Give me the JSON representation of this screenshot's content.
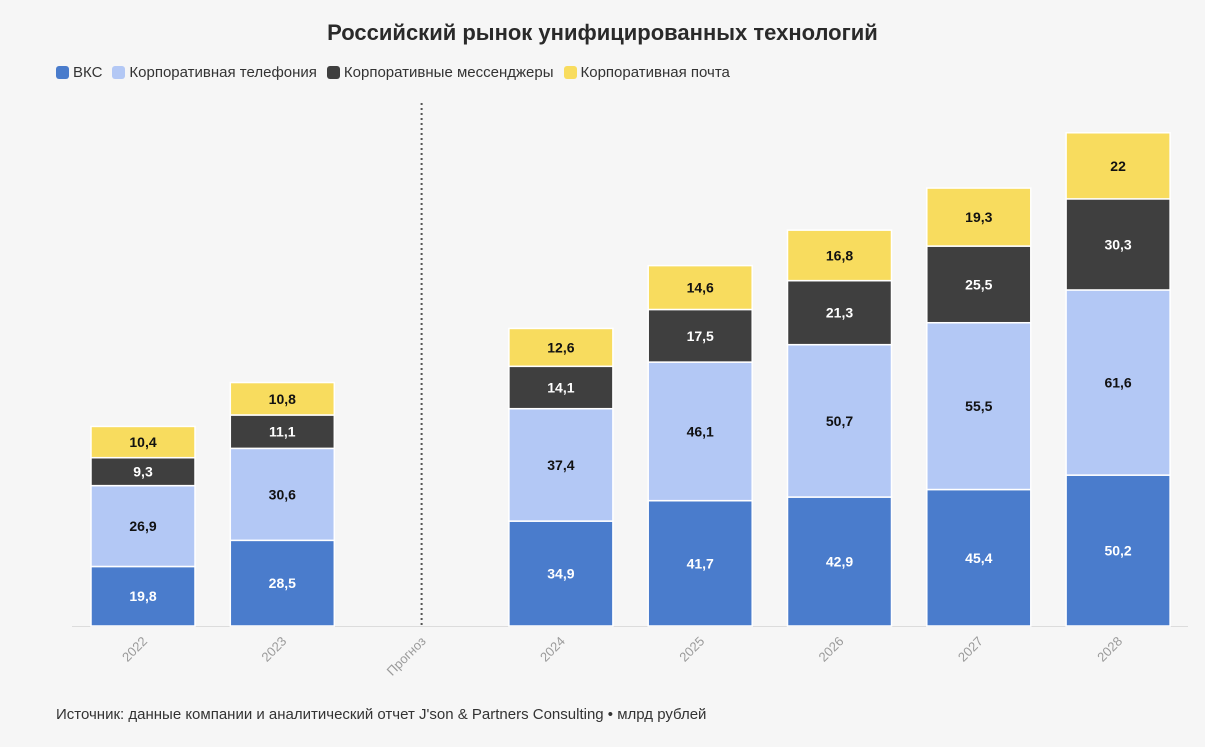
{
  "chart_data": {
    "type": "bar",
    "stacked": true,
    "title": "Российский рынок унифицированных технологий",
    "categories": [
      "2022",
      "2023",
      "Прогноз",
      "2024",
      "2025",
      "2026",
      "2027",
      "2028"
    ],
    "separator_category": "Прогноз",
    "series": [
      {
        "name": "ВКС",
        "color": "#4a7ccc",
        "label_color": "#ffffff",
        "values": [
          19.8,
          28.5,
          null,
          34.9,
          41.7,
          42.9,
          45.4,
          50.2
        ],
        "labels": [
          "19,8",
          "28,5",
          "",
          "34,9",
          "41,7",
          "42,9",
          "45,4",
          "50,2"
        ]
      },
      {
        "name": "Корпоративная телефония",
        "color": "#b3c8f5",
        "label_color": "#111111",
        "values": [
          26.9,
          30.6,
          null,
          37.4,
          46.1,
          50.7,
          55.5,
          61.6
        ],
        "labels": [
          "26,9",
          "30,6",
          "",
          "37,4",
          "46,1",
          "50,7",
          "55,5",
          "61,6"
        ]
      },
      {
        "name": "Корпоративные мессенджеры",
        "color": "#3f3f3f",
        "label_color": "#ffffff",
        "values": [
          9.3,
          11.1,
          null,
          14.1,
          17.5,
          21.3,
          25.5,
          30.3
        ],
        "labels": [
          "9,3",
          "11,1",
          "",
          "14,1",
          "17,5",
          "21,3",
          "25,5",
          "30,3"
        ]
      },
      {
        "name": "Корпоративная почта",
        "color": "#f8dc5e",
        "label_color": "#111111",
        "values": [
          10.4,
          10.8,
          null,
          12.6,
          14.6,
          16.8,
          19.3,
          22
        ],
        "labels": [
          "10,4",
          "10,8",
          "",
          "12,6",
          "14,6",
          "16,8",
          "19,3",
          "22"
        ]
      }
    ],
    "ylim": [
      0,
      175
    ],
    "grid": false,
    "legend": "top-left"
  },
  "source": "Источник: данные компании и аналитический отчет J'son & Partners Consulting • млрд рублей"
}
